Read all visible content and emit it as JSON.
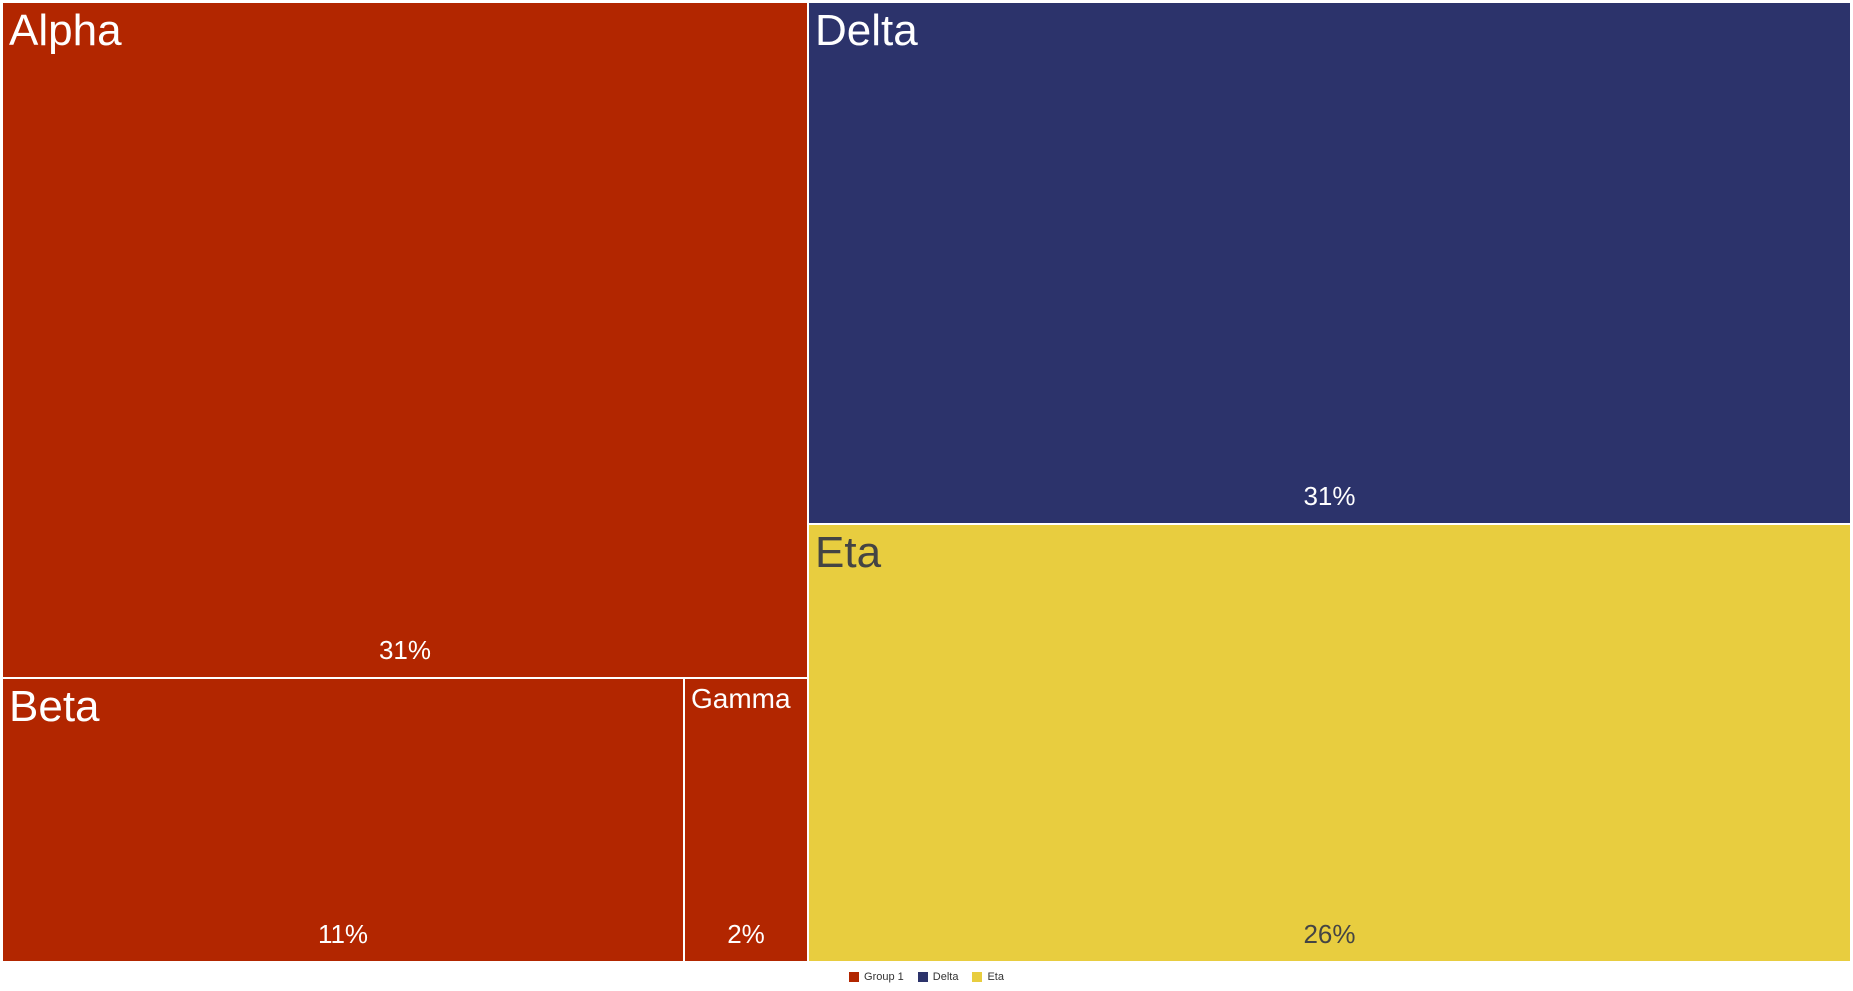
{
  "chart_data": {
    "type": "treemap",
    "title": "",
    "groups": [
      {
        "name": "Group 1",
        "color": "#B22600",
        "children": [
          {
            "name": "Alpha",
            "value": 31,
            "label": "31%",
            "text_color": "#FFFFFF"
          },
          {
            "name": "Beta",
            "value": 11,
            "label": "11%",
            "text_color": "#FFFFFF"
          },
          {
            "name": "Gamma",
            "value": 2,
            "label": "2%",
            "text_color": "#FFFFFF"
          }
        ]
      },
      {
        "name": "Delta",
        "color": "#2C336B",
        "children": [
          {
            "name": "Delta",
            "value": 31,
            "label": "31%",
            "text_color": "#FFFFFF"
          }
        ]
      },
      {
        "name": "Eta",
        "color": "#E8CD3F",
        "children": [
          {
            "name": "Eta",
            "value": 26,
            "label": "26%",
            "text_color": "#444444"
          }
        ]
      }
    ],
    "legend": {
      "position": "bottom-center",
      "entries": [
        {
          "name": "Group 1",
          "color": "#B22600"
        },
        {
          "name": "Delta",
          "color": "#2C336B"
        },
        {
          "name": "Eta",
          "color": "#E8CD3F"
        }
      ]
    }
  }
}
